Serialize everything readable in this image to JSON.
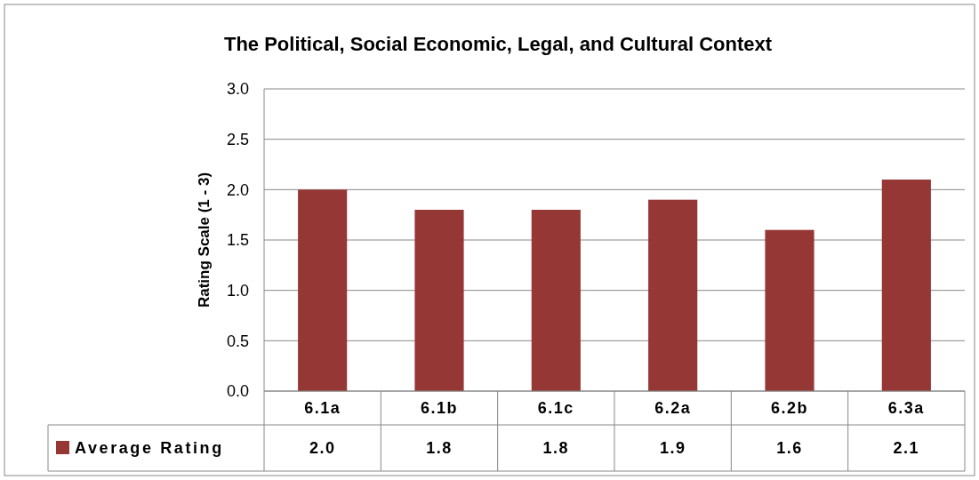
{
  "chart_data": {
    "type": "bar",
    "title": "The Political, Social Economic, Legal, and Cultural Context",
    "ylabel": "Rating  Scale (1 - 3)",
    "categories": [
      "6.1a",
      "6.1b",
      "6.1c",
      "6.2a",
      "6.2b",
      "6.3a"
    ],
    "series": [
      {
        "name": "Average Rating",
        "color": "#953735",
        "values": [
          2.0,
          1.8,
          1.8,
          1.9,
          1.6,
          2.1
        ],
        "value_labels": [
          "2.0",
          "1.8",
          "1.8",
          "1.9",
          "1.6",
          "2.1"
        ]
      }
    ],
    "ylim": [
      0,
      3
    ],
    "yticks": [
      {
        "value": 0,
        "label": "0.0"
      },
      {
        "value": 0.5,
        "label": "0.5"
      },
      {
        "value": 1,
        "label": "1.0"
      },
      {
        "value": 1.5,
        "label": "1.5"
      },
      {
        "value": 2,
        "label": "2.0"
      },
      {
        "value": 2.5,
        "label": "2.5"
      },
      {
        "value": 3,
        "label": "3.0"
      }
    ],
    "grid": "y",
    "legend": "bottom left"
  }
}
